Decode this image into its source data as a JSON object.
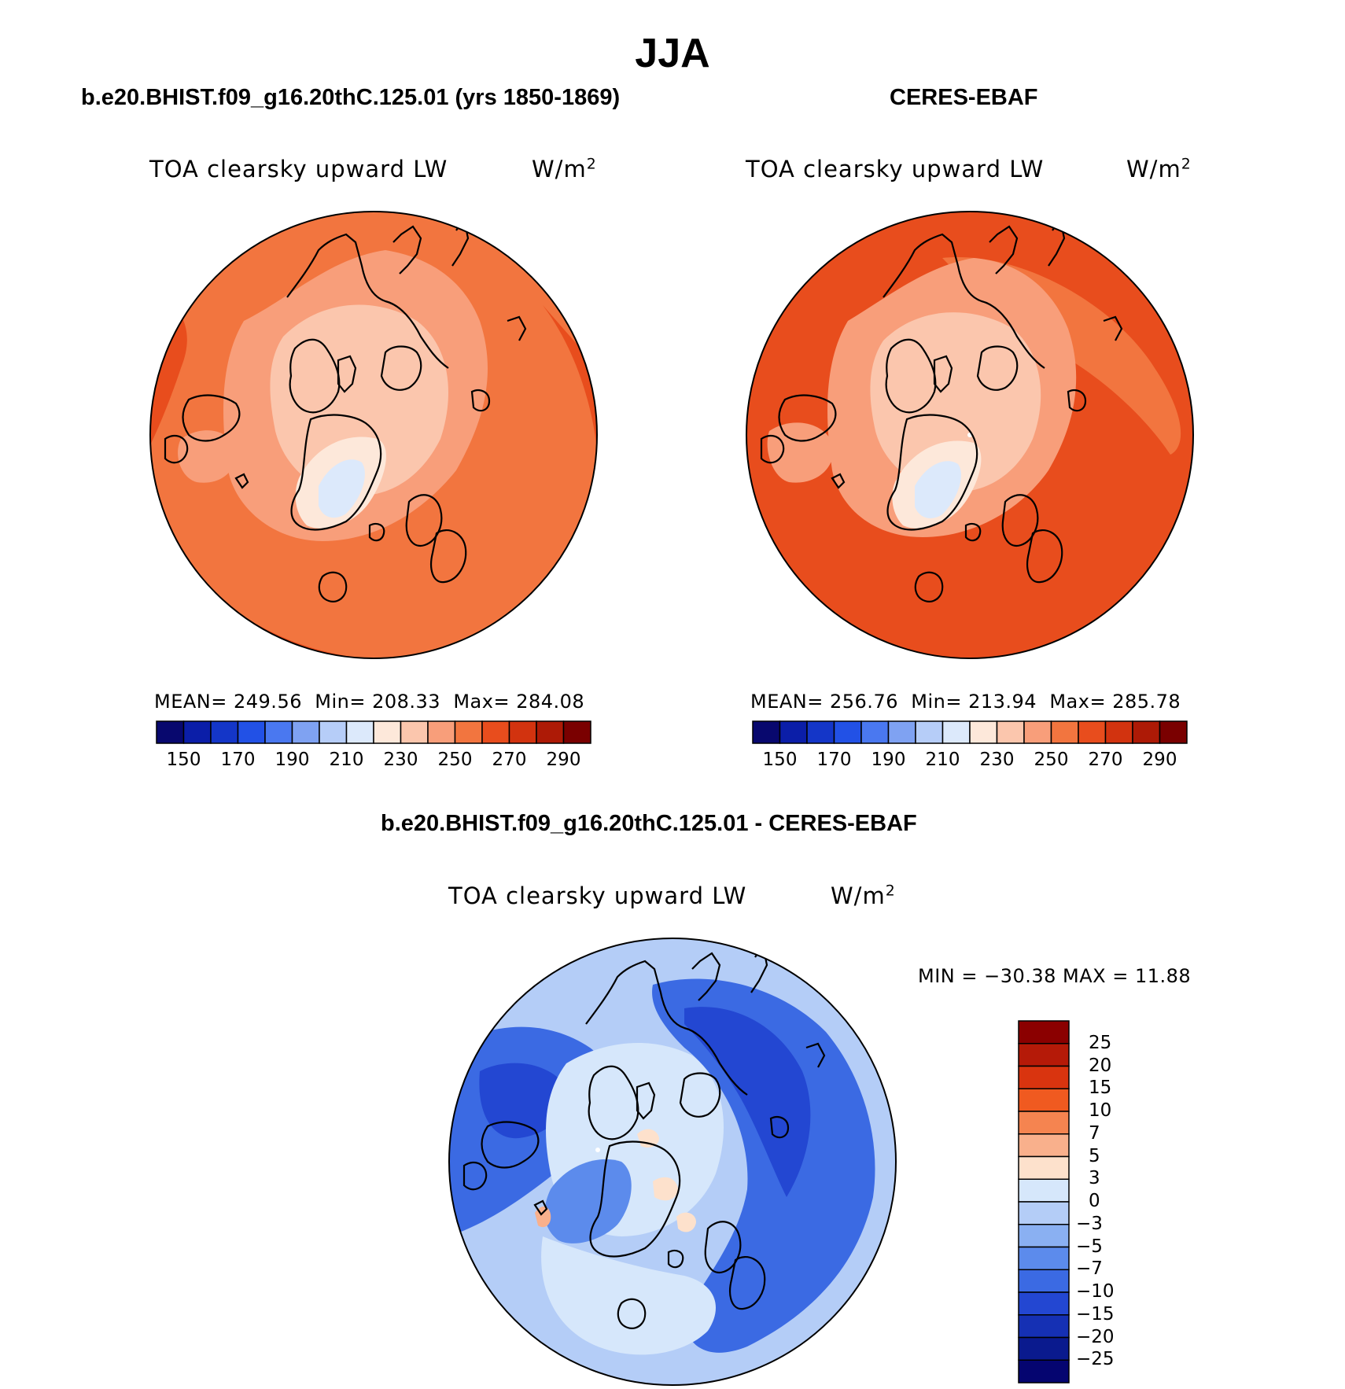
{
  "title": "JJA",
  "panels": [
    {
      "case_title": "b.e20.BHIST.f09_g16.20thC.125.01 (yrs 1850-1869)",
      "variable": "TOA clearsky upward LW",
      "units_base": "W/m",
      "units_exp": "2",
      "stats": {
        "mean_label": "MEAN=",
        "mean": "249.56",
        "min_label": "Min=",
        "min": "208.33",
        "max_label": "Max=",
        "max": "284.08"
      }
    },
    {
      "case_title": "CERES-EBAF",
      "variable": "TOA clearsky upward LW",
      "units_base": "W/m",
      "units_exp": "2",
      "stats": {
        "mean_label": "MEAN=",
        "mean": "256.76",
        "min_label": "Min=",
        "min": "213.94",
        "max_label": "Max=",
        "max": "285.78"
      }
    }
  ],
  "diff_panel": {
    "case_title": "b.e20.BHIST.f09_g16.20thC.125.01 - CERES-EBAF",
    "variable": "TOA clearsky upward LW",
    "units_base": "W/m",
    "units_exp": "2",
    "minmax": "MIN = −30.38 MAX =   11.88"
  },
  "abs_colorbar": {
    "colors": [
      "#08086e",
      "#0b1ea8",
      "#1436c8",
      "#2251e6",
      "#4a78f0",
      "#7fa2f2",
      "#b6cdf8",
      "#dce9fb",
      "#fde8da",
      "#fbc6ad",
      "#f89e7a",
      "#f2753f",
      "#e84d1d",
      "#d2330f",
      "#ad1a06",
      "#7a0000"
    ],
    "ticks": [
      "150",
      "170",
      "190",
      "210",
      "230",
      "250",
      "270",
      "290"
    ]
  },
  "diff_colorbar": {
    "colors_top_to_bottom": [
      "#8b0000",
      "#b51a08",
      "#d9340f",
      "#f05a20",
      "#f58450",
      "#f9b08c",
      "#fde1cc",
      "#d6e7fb",
      "#b4cdf7",
      "#8ab0f2",
      "#5c8bec",
      "#3b6ae3",
      "#2347d2",
      "#1530b4",
      "#0a1a8e",
      "#050570"
    ],
    "labels_top_to_bottom": [
      "25",
      "20",
      "15",
      "10",
      "7",
      "5",
      "3",
      "0",
      "−3",
      "−5",
      "−7",
      "−10",
      "−15",
      "−20",
      "−25"
    ]
  }
}
